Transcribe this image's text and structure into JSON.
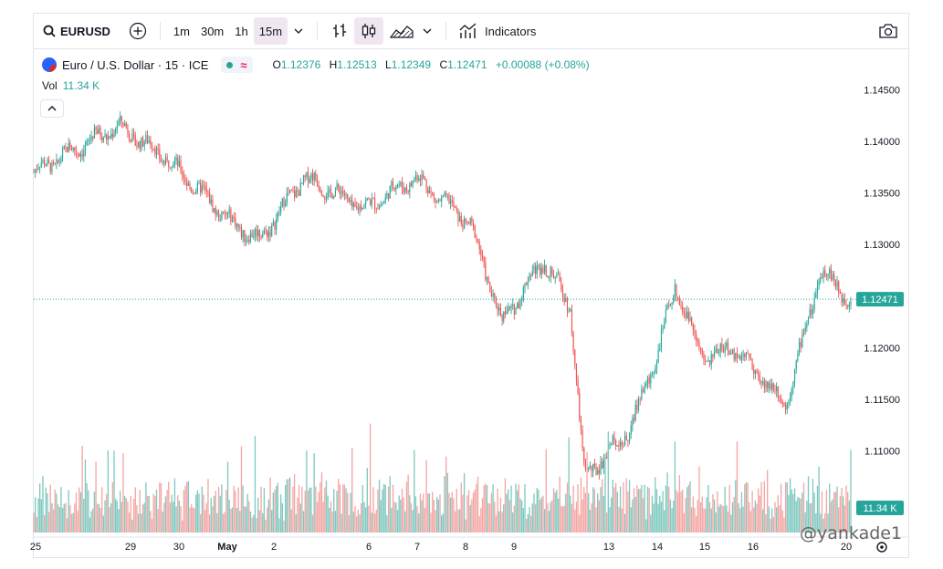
{
  "toolbar": {
    "symbol": "EURUSD",
    "timeframes": [
      "1m",
      "30m",
      "1h",
      "15m"
    ],
    "active_timeframe": "15m",
    "indicators_label": "Indicators"
  },
  "legend": {
    "title": "Euro / U.S. Dollar · 15 · ICE",
    "open_label": "O",
    "open": "1.12376",
    "high_label": "H",
    "high": "1.12513",
    "low_label": "L",
    "low": "1.12349",
    "close_label": "C",
    "close": "1.12471",
    "change": "+0.00088 (+0.08%)",
    "vol_label": "Vol",
    "vol_value": "11.34 K"
  },
  "price_axis": {
    "ticks": [
      "1.14500",
      "1.14000",
      "1.13500",
      "1.13000",
      "1.12000",
      "1.11500",
      "1.11000"
    ],
    "last_price_label": "1.12471",
    "volume_label": "11.34 K"
  },
  "time_axis": {
    "ticks": [
      "25",
      "29",
      "30",
      "May",
      "2",
      "6",
      "7",
      "8",
      "9",
      "13",
      "14",
      "15",
      "16",
      "20"
    ]
  },
  "watermark": "@yankade1",
  "colors": {
    "up": "#26a69a",
    "down": "#ef5350",
    "up_vol": "#7fc9c0",
    "down_vol": "#f3a6a4",
    "accent": "#2962ff"
  },
  "chart_data": {
    "type": "candlestick",
    "symbol": "EURUSD",
    "interval": "15",
    "ylim": [
      1.106,
      1.1475
    ],
    "last_close": 1.12471,
    "x_ticks": [
      "25",
      "29",
      "30",
      "May",
      "2",
      "6",
      "7",
      "8",
      "9",
      "13",
      "14",
      "15",
      "16",
      "20"
    ],
    "close_path": [
      {
        "x": "25",
        "y": 1.137
      },
      {
        "x": "29",
        "y": 1.1415
      },
      {
        "x": "30",
        "y": 1.1385
      },
      {
        "x": "May",
        "y": 1.132
      },
      {
        "x": "2",
        "y": 1.1305
      },
      {
        "x": "2",
        "y": 1.1365
      },
      {
        "x": "6",
        "y": 1.1335
      },
      {
        "x": "7",
        "y": 1.1365
      },
      {
        "x": "8",
        "y": 1.132
      },
      {
        "x": "9",
        "y": 1.1225
      },
      {
        "x": "9",
        "y": 1.1285
      },
      {
        "x": "9",
        "y": 1.124
      },
      {
        "x": "13",
        "y": 1.1075
      },
      {
        "x": "13",
        "y": 1.112
      },
      {
        "x": "14",
        "y": 1.1195
      },
      {
        "x": "14",
        "y": 1.126
      },
      {
        "x": "15",
        "y": 1.119
      },
      {
        "x": "16",
        "y": 1.12
      },
      {
        "x": "16",
        "y": 1.1145
      },
      {
        "x": "20",
        "y": 1.1275
      },
      {
        "x": "20",
        "y": 1.12471
      }
    ],
    "volume_last": "11.34 K"
  }
}
